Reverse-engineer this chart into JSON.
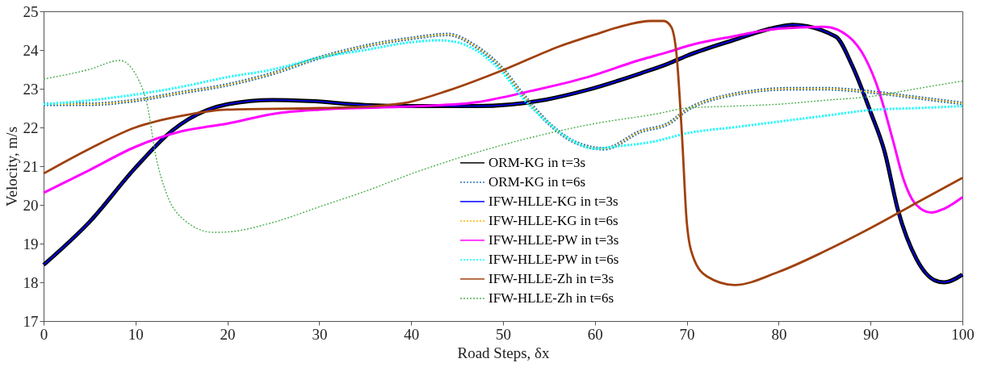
{
  "chart_data": {
    "type": "line",
    "xlabel": "Road Steps, δx",
    "ylabel": "Velocity, m/s",
    "xlim": [
      0,
      100
    ],
    "xticks": [
      0,
      10,
      20,
      30,
      40,
      50,
      60,
      70,
      80,
      90,
      100
    ],
    "ylim": [
      17,
      25
    ],
    "yticks": [
      17,
      18,
      19,
      20,
      21,
      22,
      23,
      24,
      25
    ],
    "grid": false,
    "legend": "bottom",
    "marker": "none",
    "series": [
      {
        "name": "ORM-KG in t=3s",
        "color": "#000000",
        "line_style": "solid",
        "x": [
          0,
          5,
          10,
          14,
          20,
          25,
          29,
          35,
          41,
          47,
          54.7,
          59.2,
          65,
          68,
          70,
          75,
          80,
          81.5,
          86.2,
          88,
          90,
          91.5,
          93,
          95,
          97,
          98,
          100
        ],
        "values": [
          18.45,
          19.56,
          20.96,
          21.92,
          22.6,
          22.71,
          22.68,
          22.58,
          22.55,
          22.55,
          22.72,
          22.97,
          23.4,
          23.65,
          23.85,
          24.25,
          24.6,
          24.65,
          24.35,
          23.6,
          22.4,
          21.4,
          19.85,
          18.6,
          18.05,
          18.0,
          18.2
        ]
      },
      {
        "name": "ORM-KG in t=6s",
        "color": "#2a6fb0",
        "line_style": "dotted",
        "x": [
          0,
          5,
          10,
          15,
          20,
          25,
          30,
          35,
          40,
          44,
          47,
          50,
          52,
          55,
          58,
          61,
          65,
          68,
          70,
          74,
          81.5,
          85,
          89.4,
          94,
          100
        ],
        "values": [
          22.6,
          22.6,
          22.7,
          22.9,
          23.1,
          23.4,
          23.8,
          24.1,
          24.3,
          24.4,
          24.1,
          23.5,
          22.9,
          22.1,
          21.6,
          21.45,
          21.9,
          22.1,
          22.45,
          22.8,
          23.0,
          23.0,
          22.93,
          22.8,
          22.62
        ]
      },
      {
        "name": "IFW-HLLE-KG in t=3s",
        "color": "#0000ff",
        "line_style": "solid",
        "x": [
          0,
          5,
          10,
          14,
          20,
          25,
          29,
          35,
          41,
          47,
          54.7,
          59.2,
          65,
          68,
          70,
          75,
          80,
          81.5,
          86.2,
          88,
          90,
          91.5,
          93,
          95,
          97,
          98,
          100
        ],
        "values": [
          18.45,
          19.56,
          20.96,
          21.92,
          22.6,
          22.71,
          22.68,
          22.58,
          22.55,
          22.55,
          22.72,
          22.97,
          23.4,
          23.65,
          23.85,
          24.25,
          24.6,
          24.65,
          24.35,
          23.6,
          22.4,
          21.4,
          19.85,
          18.6,
          18.05,
          18.0,
          18.2
        ]
      },
      {
        "name": "IFW-HLLE-KG in t=6s",
        "color": "#f5b800",
        "line_style": "dotted",
        "x": [
          0,
          5,
          10,
          15,
          20,
          25,
          30,
          35,
          40,
          44,
          47,
          50,
          52,
          55,
          58,
          61,
          65,
          68,
          70,
          74,
          81.5,
          85,
          89.4,
          94,
          100
        ],
        "values": [
          22.6,
          22.6,
          22.7,
          22.9,
          23.1,
          23.4,
          23.8,
          24.1,
          24.3,
          24.4,
          24.1,
          23.5,
          22.9,
          22.1,
          21.6,
          21.45,
          21.9,
          22.1,
          22.45,
          22.8,
          23.0,
          23.0,
          22.93,
          22.8,
          22.62
        ]
      },
      {
        "name": "IFW-HLLE-PW in t=3s",
        "color": "#ff00ff",
        "line_style": "solid",
        "x": [
          0,
          5,
          10,
          15,
          20,
          25,
          30,
          41,
          47.1,
          53.2,
          59.2,
          65,
          68,
          70,
          75,
          80,
          85,
          87.6,
          89.4,
          90.9,
          92.4,
          93.6,
          94.8,
          96.6,
          98,
          100
        ],
        "values": [
          20.31,
          20.9,
          21.5,
          21.9,
          22.1,
          22.35,
          22.46,
          22.55,
          22.65,
          22.95,
          23.3,
          23.75,
          23.95,
          24.1,
          24.35,
          24.55,
          24.6,
          24.35,
          23.8,
          22.95,
          21.7,
          20.65,
          20.05,
          19.8,
          19.9,
          20.2
        ]
      },
      {
        "name": "IFW-HLLE-PW in t=6s",
        "color": "#00ffff",
        "line_style": "dotted",
        "x": [
          0,
          5,
          10,
          15,
          20,
          25,
          30,
          35,
          40,
          43,
          45,
          47,
          50,
          52,
          55,
          58,
          60,
          62,
          66.7,
          70,
          75,
          80,
          85,
          90,
          95,
          100
        ],
        "values": [
          22.6,
          22.7,
          22.85,
          23.05,
          23.3,
          23.5,
          23.8,
          24.0,
          24.2,
          24.25,
          24.2,
          24.0,
          23.4,
          22.8,
          22.1,
          21.6,
          21.45,
          21.5,
          21.65,
          21.85,
          22.0,
          22.15,
          22.3,
          22.45,
          22.5,
          22.55
        ]
      },
      {
        "name": "IFW-HLLE-Zh in t=3s",
        "color": "#a0410d",
        "line_style": "solid",
        "x": [
          0,
          5,
          10,
          15,
          20,
          30,
          36,
          39.7,
          44,
          50.2,
          56.2,
          60,
          63.5,
          66,
          67.5,
          68.3,
          68.9,
          69.5,
          70,
          70.7,
          72.2,
          75.2,
          80,
          85,
          90,
          95,
          100
        ],
        "values": [
          20.81,
          21.45,
          22.0,
          22.3,
          22.46,
          22.5,
          22.55,
          22.65,
          22.95,
          23.5,
          24.1,
          24.4,
          24.65,
          24.75,
          24.75,
          24.6,
          23.85,
          21.7,
          19.55,
          18.65,
          18.15,
          17.93,
          18.27,
          18.8,
          19.4,
          20.05,
          20.7
        ]
      },
      {
        "name": "IFW-HLLE-Zh in t=6s",
        "color": "#4caf50",
        "line_style": "dotted",
        "x": [
          0,
          5,
          8.3,
          10.4,
          11.3,
          12.2,
          13.4,
          15.2,
          18.5,
          20,
          25,
          30.5,
          35,
          40,
          45,
          50,
          55,
          60,
          66.7,
          70,
          75,
          80,
          85,
          90,
          95,
          100
        ],
        "values": [
          23.25,
          23.5,
          23.73,
          23.2,
          22.56,
          21.28,
          20.28,
          19.63,
          19.29,
          19.3,
          19.55,
          19.99,
          20.35,
          20.8,
          21.2,
          21.55,
          21.85,
          22.1,
          22.35,
          22.5,
          22.55,
          22.6,
          22.7,
          22.8,
          23.0,
          23.2
        ]
      }
    ]
  }
}
